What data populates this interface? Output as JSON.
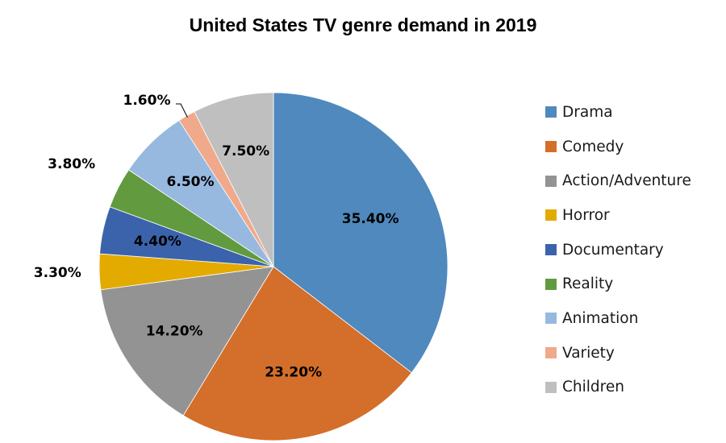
{
  "chart_data": {
    "type": "pie",
    "title": "United States TV genre demand in 2019",
    "start_angle": "12 o'clock, clockwise",
    "legend_position": "right",
    "slices": [
      {
        "label": "Drama",
        "value": 35.4,
        "display": "35.40%",
        "color": "#4F89BD"
      },
      {
        "label": "Comedy",
        "value": 23.2,
        "display": "23.20%",
        "color": "#D46E2B"
      },
      {
        "label": "Action/Adventure",
        "value": 14.2,
        "display": "14.20%",
        "color": "#939393"
      },
      {
        "label": "Horror",
        "value": 3.3,
        "display": "3.30%",
        "color": "#E3AA00"
      },
      {
        "label": "Documentary",
        "value": 4.4,
        "display": "4.40%",
        "color": "#3B63AC"
      },
      {
        "label": "Reality",
        "value": 3.8,
        "display": "3.80%",
        "color": "#629A3F"
      },
      {
        "label": "Animation",
        "value": 6.5,
        "display": "6.50%",
        "color": "#97B9E0"
      },
      {
        "label": "Variety",
        "value": 1.6,
        "display": "1.60%",
        "color": "#F0A98A"
      },
      {
        "label": "Children",
        "value": 7.5,
        "display": "7.50%",
        "color": "#BFBFBF"
      }
    ]
  }
}
